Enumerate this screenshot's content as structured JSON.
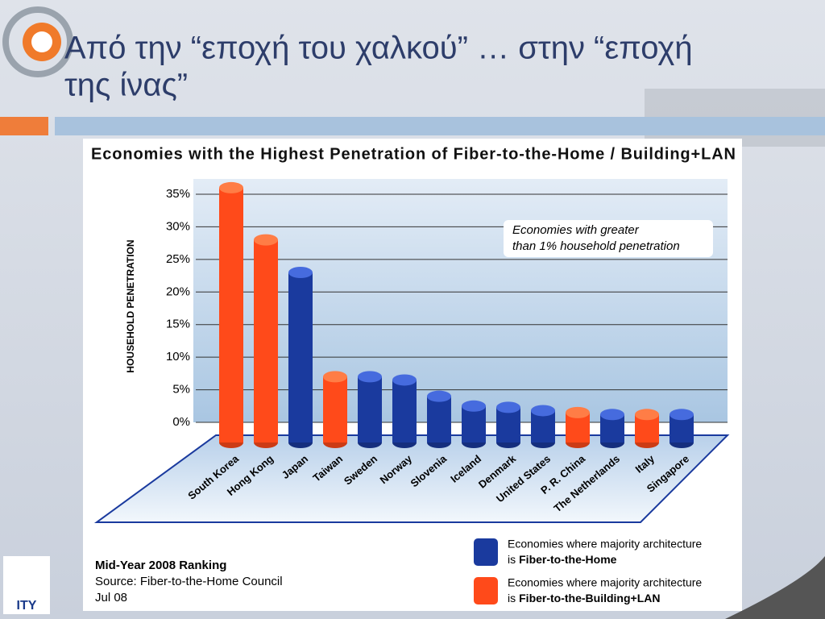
{
  "slide": {
    "title_lines": [
      "Από την “εποχή του χαλκού” … στην “εποχή",
      "της ίνας”"
    ],
    "logo_text": "ITY"
  },
  "chart_data": {
    "type": "bar",
    "title": "Economies with the Highest Penetration of Fiber-to-the-Home / Building+LAN",
    "y_label": "HOUSEHOLD PENETRATION",
    "annotation_lines": [
      "Economies with greater",
      "than 1% household penetration"
    ],
    "categories": [
      "South Korea",
      "Hong Kong",
      "Japan",
      "Taiwan",
      "Sweden",
      "Norway",
      "Slovenia",
      "Iceland",
      "Denmark",
      "United States",
      "P. R. China",
      "The Netherlands",
      "Italy",
      "Singapore"
    ],
    "values": [
      36,
      28,
      23,
      7,
      7,
      6.5,
      4,
      2.5,
      2.3,
      1.8,
      1.5,
      1.2,
      1.2,
      1.2
    ],
    "colors": [
      "#ff4a1a",
      "#ff4a1a",
      "#1a3a9e",
      "#ff4a1a",
      "#1a3a9e",
      "#1a3a9e",
      "#1a3a9e",
      "#1a3a9e",
      "#1a3a9e",
      "#1a3a9e",
      "#ff4a1a",
      "#1a3a9e",
      "#ff4a1a",
      "#1a3a9e"
    ],
    "ylim": [
      0,
      35
    ],
    "yticks": [
      {
        "value": 0,
        "label": "0%"
      },
      {
        "value": 5,
        "label": "5%"
      },
      {
        "value": 10,
        "label": "10%"
      },
      {
        "value": 15,
        "label": "15%"
      },
      {
        "value": 20,
        "label": "20%"
      },
      {
        "value": 25,
        "label": "25%"
      },
      {
        "value": 30,
        "label": "30%"
      },
      {
        "value": 35,
        "label": "35%"
      }
    ],
    "grid": true,
    "legend": [
      {
        "color": "#1a3a9e",
        "lines": [
          "Economies where majority architecture",
          "is",
          "Fiber-to-the-Home"
        ]
      },
      {
        "color": "#ff4a1a",
        "lines": [
          "Economies where majority architecture",
          "is",
          "Fiber-to-the-Building+LAN"
        ]
      }
    ],
    "footer_lines": [
      "Mid-Year 2008 Ranking",
      "Source: Fiber-to-the-Home Council",
      "Jul 08"
    ]
  }
}
